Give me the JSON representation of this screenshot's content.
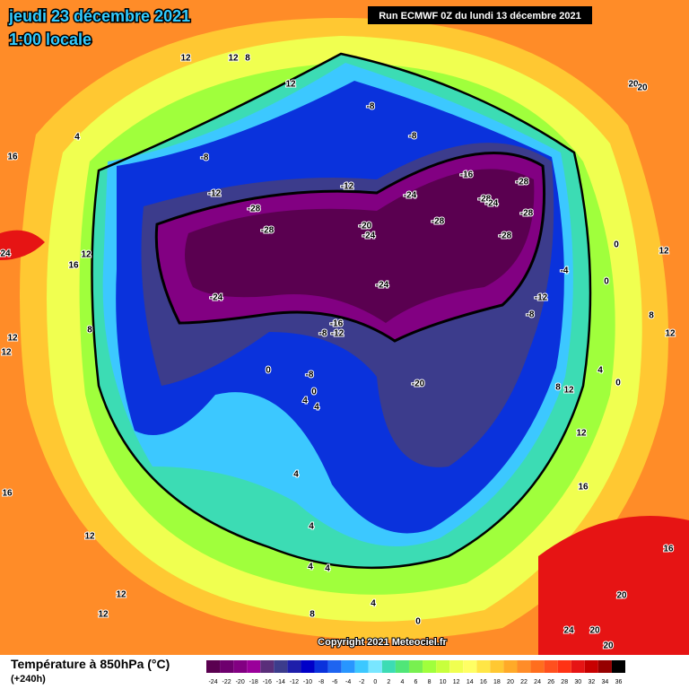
{
  "header": {
    "date": "jeudi 23 décembre 2021",
    "time": "1:00 locale"
  },
  "run_info": "Run ECMWF 0Z du lundi 13 décembre 2021",
  "copyright": "Copyright 2021 Meteociel.fr",
  "legend": {
    "title": "Température à 850hPa (°C)",
    "lead_time": "(+240h)",
    "labels": [
      -24,
      -22,
      -20,
      -18,
      -16,
      -14,
      -12,
      -10,
      -8,
      -6,
      -4,
      -2,
      0,
      2,
      4,
      6,
      8,
      10,
      12,
      14,
      16,
      18,
      20,
      22,
      24,
      26,
      28,
      30,
      32,
      34,
      36
    ],
    "colors": [
      "#5a0050",
      "#6e006e",
      "#820082",
      "#9a009a",
      "#5a2e7a",
      "#3c3c8c",
      "#1e1eaa",
      "#0000c8",
      "#0a32dc",
      "#1e64f0",
      "#2896ff",
      "#3cc8ff",
      "#78e6ff",
      "#3cdcb4",
      "#50e678",
      "#78f050",
      "#a0ff3c",
      "#c8ff3c",
      "#f0ff50",
      "#ffff64",
      "#ffe646",
      "#ffc832",
      "#ffaa28",
      "#ff8c28",
      "#ff6e1e",
      "#ff501e",
      "#ff3214",
      "#e61414",
      "#c80000",
      "#960000",
      "#000000"
    ]
  },
  "map": {
    "contour_labels": [
      "12",
      "12",
      "8",
      "12",
      "20",
      "20",
      "4",
      "16",
      "-8",
      "-8",
      "-8",
      "-12",
      "-12",
      "-16",
      "-24",
      "-28",
      "-24",
      "-28",
      "-28",
      "-28",
      "-28",
      "-20",
      "-24",
      "-28",
      "-28",
      "-24",
      "-24",
      "-16",
      "-8",
      "-12",
      "-20",
      "-12",
      "-8",
      "-4",
      "0",
      "0",
      "12",
      "24",
      "12",
      "16",
      "12",
      "8",
      "12",
      "0",
      "-8",
      "4",
      "0",
      "4",
      "8",
      "12",
      "0",
      "4",
      "12",
      "8",
      "12",
      "16",
      "16",
      "4",
      "4",
      "12",
      "4",
      "4",
      "12",
      "12",
      "8",
      "4",
      "0",
      "20",
      "24",
      "20",
      "20",
      "16"
    ]
  }
}
